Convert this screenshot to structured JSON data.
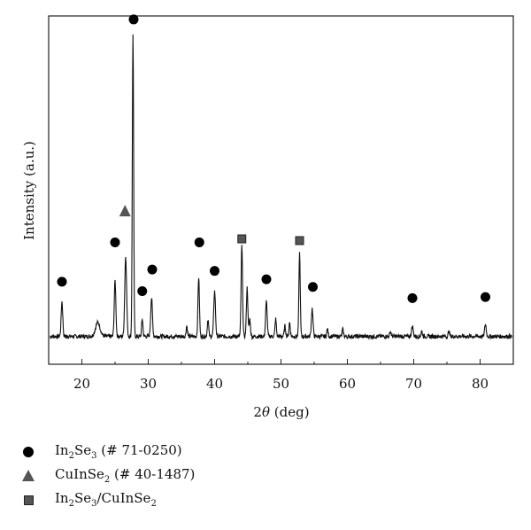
{
  "chart_data": {
    "type": "line",
    "xlabel_prefix": "2",
    "xlabel_theta": "θ",
    "xlabel_suffix": " (deg)",
    "ylabel": "Intensity (a.u.)",
    "xlim": [
      15,
      85
    ],
    "ylim": [
      0,
      1
    ],
    "xticks": [
      "20",
      "30",
      "40",
      "50",
      "60",
      "70",
      "80"
    ],
    "xtick_values": [
      20,
      30,
      40,
      50,
      60,
      70,
      80
    ],
    "grid": false,
    "baseline": 0.08,
    "peaks": [
      {
        "x": 17.0,
        "h": 0.1,
        "w": 0.12
      },
      {
        "x": 22.4,
        "h": 0.04,
        "w": 0.35
      },
      {
        "x": 25.0,
        "h": 0.16,
        "w": 0.12
      },
      {
        "x": 26.6,
        "h": 0.23,
        "w": 0.14
      },
      {
        "x": 27.7,
        "h": 0.87,
        "w": 0.1
      },
      {
        "x": 29.1,
        "h": 0.05,
        "w": 0.1
      },
      {
        "x": 30.5,
        "h": 0.11,
        "w": 0.13
      },
      {
        "x": 35.8,
        "h": 0.03,
        "w": 0.1
      },
      {
        "x": 37.6,
        "h": 0.17,
        "w": 0.11
      },
      {
        "x": 39.0,
        "h": 0.05,
        "w": 0.1
      },
      {
        "x": 40.0,
        "h": 0.13,
        "w": 0.13
      },
      {
        "x": 44.1,
        "h": 0.26,
        "w": 0.11
      },
      {
        "x": 44.9,
        "h": 0.14,
        "w": 0.11
      },
      {
        "x": 45.3,
        "h": 0.05,
        "w": 0.1
      },
      {
        "x": 47.8,
        "h": 0.1,
        "w": 0.12
      },
      {
        "x": 49.2,
        "h": 0.05,
        "w": 0.1
      },
      {
        "x": 50.6,
        "h": 0.03,
        "w": 0.1
      },
      {
        "x": 51.3,
        "h": 0.04,
        "w": 0.1
      },
      {
        "x": 52.8,
        "h": 0.24,
        "w": 0.1
      },
      {
        "x": 54.7,
        "h": 0.08,
        "w": 0.12
      },
      {
        "x": 57.0,
        "h": 0.02,
        "w": 0.1
      },
      {
        "x": 59.3,
        "h": 0.02,
        "w": 0.1
      },
      {
        "x": 66.5,
        "h": 0.015,
        "w": 0.1
      },
      {
        "x": 69.8,
        "h": 0.03,
        "w": 0.12
      },
      {
        "x": 71.2,
        "h": 0.015,
        "w": 0.1
      },
      {
        "x": 75.3,
        "h": 0.015,
        "w": 0.1
      },
      {
        "x": 80.8,
        "h": 0.035,
        "w": 0.12
      }
    ],
    "markers": [
      {
        "x": 17.0,
        "y": 0.237,
        "shape": "circle"
      },
      {
        "x": 25.0,
        "y": 0.35,
        "shape": "circle"
      },
      {
        "x": 26.5,
        "y": 0.44,
        "shape": "triangle"
      },
      {
        "x": 27.8,
        "y": 0.99,
        "shape": "circle"
      },
      {
        "x": 29.1,
        "y": 0.21,
        "shape": "circle"
      },
      {
        "x": 30.6,
        "y": 0.272,
        "shape": "circle"
      },
      {
        "x": 37.7,
        "y": 0.35,
        "shape": "circle"
      },
      {
        "x": 40.0,
        "y": 0.268,
        "shape": "circle"
      },
      {
        "x": 44.1,
        "y": 0.36,
        "shape": "square"
      },
      {
        "x": 47.8,
        "y": 0.244,
        "shape": "circle"
      },
      {
        "x": 52.8,
        "y": 0.355,
        "shape": "square"
      },
      {
        "x": 54.8,
        "y": 0.222,
        "shape": "circle"
      },
      {
        "x": 69.8,
        "y": 0.19,
        "shape": "circle"
      },
      {
        "x": 80.8,
        "y": 0.193,
        "shape": "circle"
      }
    ],
    "legend": [
      {
        "shape": "circle",
        "main": "In",
        "sub1": "2",
        "mid": "Se",
        "sub2": "3",
        "rest": " (# 71-0250)"
      },
      {
        "shape": "triangle",
        "main": "CuInSe",
        "sub1": "2",
        "mid": "",
        "sub2": "",
        "rest": " (# 40-1487)"
      },
      {
        "shape": "square",
        "main": "In",
        "sub1": "2",
        "mid": "Se",
        "sub2": "3",
        "rest": "/CuInSe",
        "sub3": "2"
      }
    ]
  }
}
